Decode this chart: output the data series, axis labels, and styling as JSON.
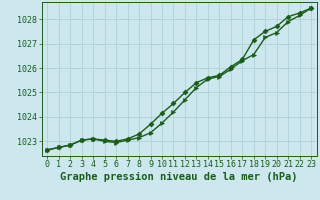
{
  "title": "Graphe pression niveau de la mer (hPa)",
  "background_color": "#cce8ee",
  "grid_color": "#b0d0d8",
  "line_color": "#1a5c1a",
  "ylim": [
    1022.4,
    1028.7
  ],
  "xlim": [
    -0.5,
    23.5
  ],
  "yticks": [
    1023,
    1024,
    1025,
    1026,
    1027,
    1028
  ],
  "xticks": [
    0,
    1,
    2,
    3,
    4,
    5,
    6,
    7,
    8,
    9,
    10,
    11,
    12,
    13,
    14,
    15,
    16,
    17,
    18,
    19,
    20,
    21,
    22,
    23
  ],
  "line1_x": [
    0,
    1,
    2,
    3,
    4,
    5,
    6,
    7,
    8,
    9,
    10,
    11,
    12,
    13,
    14,
    15,
    16,
    17,
    18,
    19,
    20,
    21,
    22,
    23
  ],
  "line1_y": [
    1022.65,
    1022.75,
    1022.85,
    1023.05,
    1023.1,
    1023.0,
    1022.95,
    1023.05,
    1023.15,
    1023.35,
    1023.75,
    1024.2,
    1024.7,
    1025.2,
    1025.55,
    1025.65,
    1025.95,
    1026.3,
    1026.55,
    1027.25,
    1027.45,
    1027.9,
    1028.15,
    1028.45
  ],
  "line2_x": [
    0,
    1,
    2,
    3,
    4,
    5,
    6,
    7,
    8,
    9,
    10,
    11,
    12,
    13,
    14,
    15,
    16,
    17,
    18,
    19,
    20,
    21,
    22,
    23
  ],
  "line2_y": [
    1022.65,
    1022.75,
    1022.85,
    1023.05,
    1023.1,
    1023.05,
    1023.0,
    1023.1,
    1023.3,
    1023.7,
    1024.15,
    1024.55,
    1025.0,
    1025.4,
    1025.6,
    1025.7,
    1026.05,
    1026.35,
    1027.15,
    1027.5,
    1027.7,
    1028.1,
    1028.25,
    1028.45
  ],
  "title_fontsize": 7.5,
  "tick_fontsize": 6,
  "marker_size": 2.8,
  "line_width": 1.0
}
